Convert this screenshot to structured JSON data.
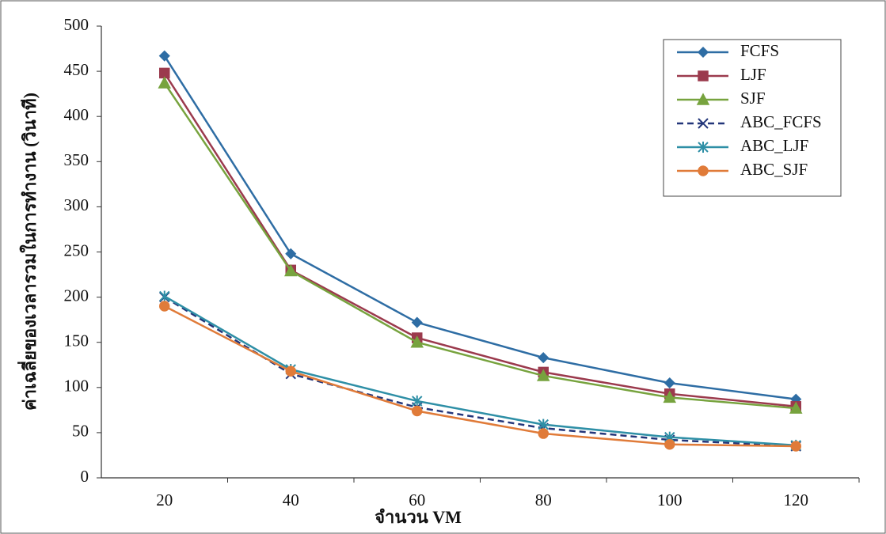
{
  "chart_data": {
    "type": "line",
    "y_label": "ค่าเฉลี่ยของเวลารวมในการทำงาน (วินาที)",
    "x_label": "จำนวน VM",
    "categories": [
      "20",
      "40",
      "60",
      "80",
      "100",
      "120"
    ],
    "series": [
      {
        "name": "FCFS",
        "color": "#2e6da4",
        "marker": "diamond",
        "dash": false,
        "values": [
          467,
          248,
          172,
          133,
          105,
          87
        ]
      },
      {
        "name": "LJF",
        "color": "#9b3a4d",
        "marker": "square",
        "dash": false,
        "values": [
          448,
          230,
          155,
          117,
          93,
          79
        ]
      },
      {
        "name": "SJF",
        "color": "#77a33e",
        "marker": "triangle",
        "dash": false,
        "values": [
          437,
          229,
          150,
          113,
          89,
          77
        ]
      },
      {
        "name": "ABC_FCFS",
        "color": "#23367a",
        "marker": "x",
        "dash": true,
        "values": [
          200,
          115,
          78,
          55,
          42,
          35
        ]
      },
      {
        "name": "ABC_LJF",
        "color": "#2e8fa6",
        "marker": "asterisk",
        "dash": false,
        "values": [
          201,
          120,
          85,
          59,
          45,
          36
        ]
      },
      {
        "name": "ABC_SJF",
        "color": "#e07b39",
        "marker": "circle",
        "dash": false,
        "values": [
          190,
          118,
          74,
          49,
          37,
          35
        ]
      }
    ],
    "ylim": [
      0,
      500
    ],
    "yticks": [
      0,
      50,
      100,
      150,
      200,
      250,
      300,
      350,
      400,
      450,
      500
    ],
    "legend": "upper-right"
  }
}
